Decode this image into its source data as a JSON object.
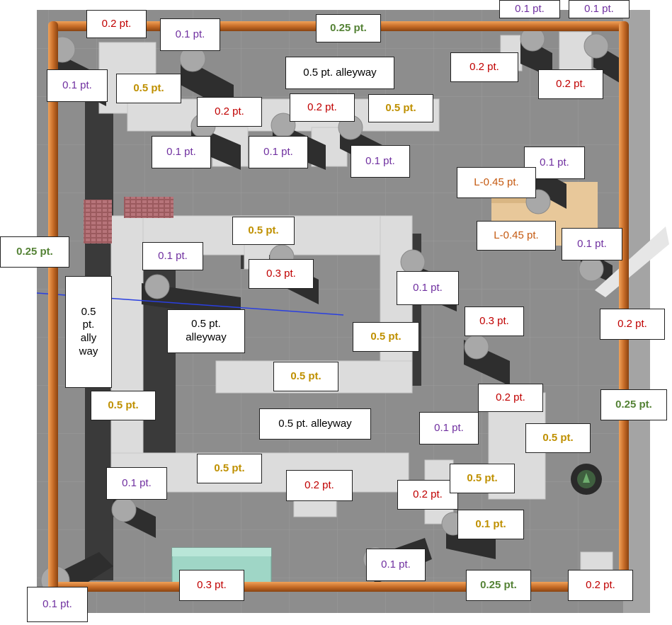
{
  "labels": {
    "l1": "0.2 pt.",
    "l2": "0.1 pt.",
    "l3": "0.25 pt.",
    "l4": "0.1 pt.",
    "l5": "0.1 pt.",
    "l6": "0.5 pt. alleyway",
    "l7": "0.2 pt.",
    "l8": "0.2 pt.",
    "l9": "0.1 pt.",
    "l10": "0.5 pt.",
    "l11": "0.2 pt.",
    "l12": "0.2 pt.",
    "l13": "0.5 pt.",
    "l14": "0.1 pt.",
    "l15": "0.1 pt.",
    "l16": "0.1 pt.",
    "l17": "0.1 pt.",
    "l18": "L-0.45 pt.",
    "l19": "0.5 pt.",
    "l20": "L-0.45 pt.",
    "l21": "0.1 pt.",
    "l22": "0.25 pt.",
    "l23": "0.1 pt.",
    "l24": "0.3 pt.",
    "l25": "0.5\npt.\nally\nway",
    "l26": "0.1 pt.",
    "l27": "0.5 pt.\nalleyway",
    "l28": "0.3 pt.",
    "l29": "0.2 pt.",
    "l30": "0.5 pt.",
    "l31": "0.5 pt.",
    "l32": "0.2 pt.",
    "l33": "0.5 pt.",
    "l34": "0.5 pt. alleyway",
    "l35": "0.25 pt.",
    "l36": "0.1 pt.",
    "l37": "0.5 pt.",
    "l38": "0.5 pt.",
    "l39": "0.1 pt.",
    "l40": "0.2 pt.",
    "l41": "0.2 pt.",
    "l42": "0.5 pt.",
    "l43": "0.1 pt.",
    "l44": "0.3 pt.",
    "l45": "0.25 pt.",
    "l46": "0.2 pt.",
    "l47": "0.1 pt."
  }
}
